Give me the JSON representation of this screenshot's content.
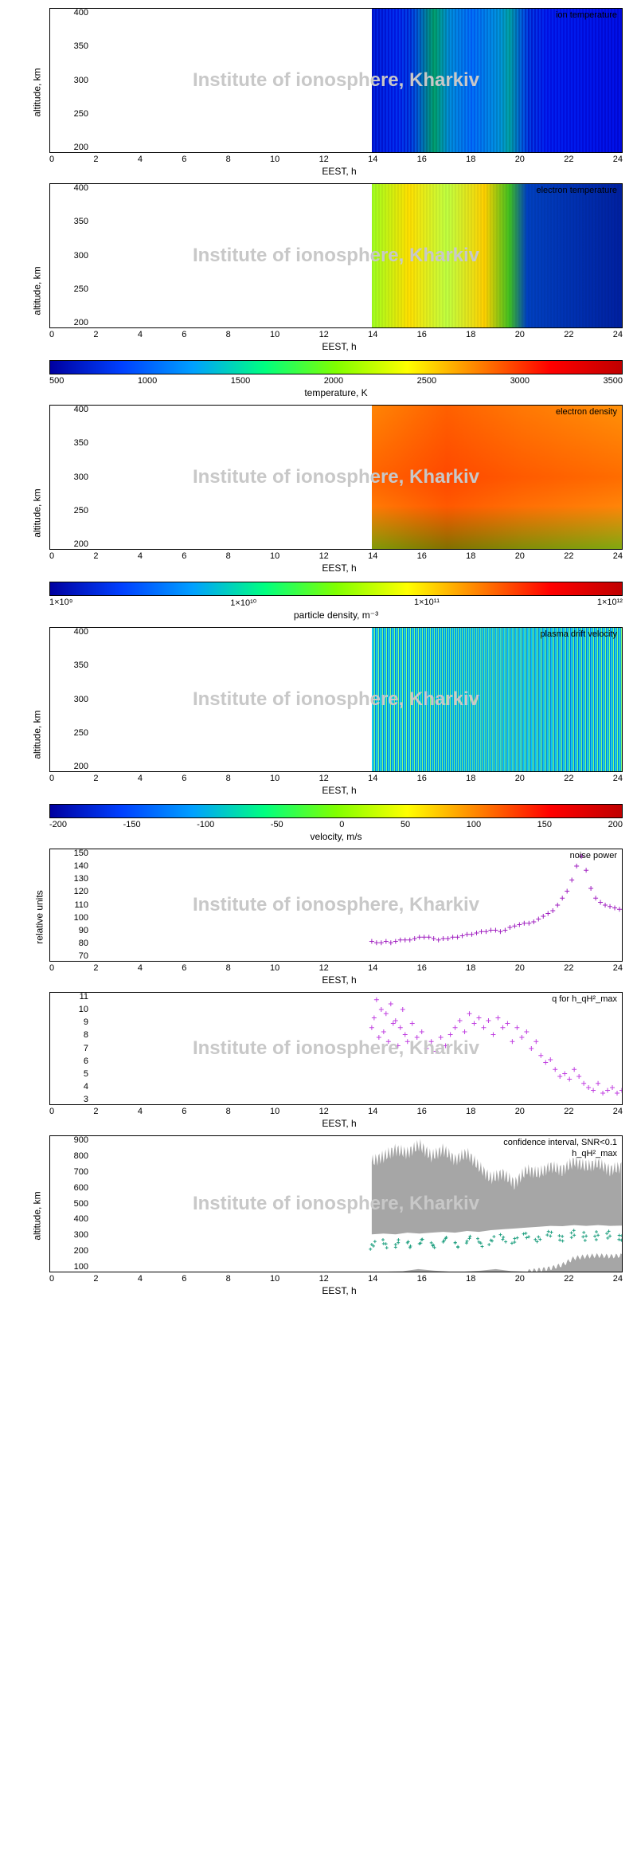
{
  "watermark": "Institute of ionosphere, Kharkiv",
  "xaxis": {
    "label": "EEST, h",
    "ticks": [
      "0",
      "2",
      "4",
      "6",
      "8",
      "10",
      "12",
      "14",
      "16",
      "18",
      "20",
      "22",
      "24"
    ],
    "min": 0,
    "max": 24,
    "data_start": 13.5,
    "data_end": 24
  },
  "altitude_axis": {
    "label": "altitude, km",
    "ticks": [
      "200",
      "250",
      "300",
      "350",
      "400"
    ],
    "min": 200,
    "max": 400
  },
  "colorbars": {
    "temperature": {
      "label": "temperature, K",
      "ticks": [
        "500",
        "1000",
        "1500",
        "2000",
        "2500",
        "3000",
        "3500"
      ],
      "gradient": "linear-gradient(to right,#0000a0,#0040ff,#00a0ff,#00ff80,#80ff00,#ffff00,#ff8000,#ff0000,#c00000)"
    },
    "density": {
      "label": "particle density, m⁻³",
      "ticks": [
        "1×10⁹",
        "1×10¹⁰",
        "1×10¹¹",
        "1×10¹²"
      ],
      "gradient": "linear-gradient(to right,#0000a0,#0040ff,#00a0ff,#00ff80,#80ff00,#ffff00,#ff8000,#ff0000,#c00000)"
    },
    "velocity": {
      "label": "velocity, m/s",
      "ticks": [
        "-200",
        "-150",
        "-100",
        "-50",
        "0",
        "50",
        "100",
        "150",
        "200"
      ],
      "gradient": "linear-gradient(to right,#0000a0,#0040ff,#00a0ff,#00ff80,#80ff00,#ffff00,#ff8000,#ff0000,#c00000)"
    }
  },
  "panels": {
    "ion_temp": {
      "title": "ion temperature",
      "fill": "repeating-linear-gradient(90deg,#0020c0 0 2px,#0040e0 2px 4px),linear-gradient(90deg,#004080,#0060c0 10%,#40c040 25%,#00a0e0 40%,#20c060 55%,#0040c0 70%,#0020a0 100%)",
      "blend": "overlay"
    },
    "elec_temp": {
      "title": "electron temperature",
      "fill": "repeating-linear-gradient(90deg,rgba(0,0,0,0.05) 0 2px,transparent 2px 4px),linear-gradient(90deg,#a0ff20,#ffe000 15%,#c0ff40 30%,#ffd000 45%,#40c020 55%,#0040c0 62%,#0020a0 100%)",
      "blend": "normal"
    },
    "density": {
      "title": "electron density",
      "fill": "linear-gradient(180deg,#ffc020 0%,#ff9000 50%,#ffb020 70%,#80e040 100%),linear-gradient(90deg,#ffb020,#ff8000 30%,#ffa020 60%,#ffc040 100%)",
      "blend": "multiply"
    },
    "drift": {
      "title": "plasma drift velocity",
      "fill": "repeating-linear-gradient(90deg,#00c0ff 0 1px,#40e0c0 1px 2px,#00a0e0 2px 3px,#80ff80 3px 4px,#0080e0 4px 5px)",
      "blend": "normal"
    }
  },
  "noise": {
    "title": "noise power",
    "ylabel": "relative units",
    "yticks": [
      "70",
      "80",
      "90",
      "100",
      "110",
      "120",
      "130",
      "140",
      "150"
    ],
    "ymin": 70,
    "ymax": 150,
    "color": "#a020c0",
    "points": [
      [
        13.5,
        84
      ],
      [
        13.7,
        83
      ],
      [
        13.9,
        83
      ],
      [
        14.1,
        84
      ],
      [
        14.3,
        83
      ],
      [
        14.5,
        84
      ],
      [
        14.7,
        85
      ],
      [
        14.9,
        85
      ],
      [
        15.1,
        85
      ],
      [
        15.3,
        86
      ],
      [
        15.5,
        87
      ],
      [
        15.7,
        87
      ],
      [
        15.9,
        87
      ],
      [
        16.1,
        86
      ],
      [
        16.3,
        85
      ],
      [
        16.5,
        86
      ],
      [
        16.7,
        86
      ],
      [
        16.9,
        87
      ],
      [
        17.1,
        87
      ],
      [
        17.3,
        88
      ],
      [
        17.5,
        89
      ],
      [
        17.7,
        89
      ],
      [
        17.9,
        90
      ],
      [
        18.1,
        91
      ],
      [
        18.3,
        91
      ],
      [
        18.5,
        92
      ],
      [
        18.7,
        92
      ],
      [
        18.9,
        91
      ],
      [
        19.1,
        92
      ],
      [
        19.3,
        94
      ],
      [
        19.5,
        95
      ],
      [
        19.7,
        96
      ],
      [
        19.9,
        97
      ],
      [
        20.1,
        97
      ],
      [
        20.3,
        98
      ],
      [
        20.5,
        100
      ],
      [
        20.7,
        102
      ],
      [
        20.9,
        104
      ],
      [
        21.1,
        106
      ],
      [
        21.3,
        110
      ],
      [
        21.5,
        115
      ],
      [
        21.7,
        120
      ],
      [
        21.9,
        128
      ],
      [
        22.1,
        138
      ],
      [
        22.3,
        145
      ],
      [
        22.5,
        135
      ],
      [
        22.7,
        122
      ],
      [
        22.9,
        115
      ],
      [
        23.1,
        112
      ],
      [
        23.3,
        110
      ],
      [
        23.5,
        109
      ],
      [
        23.7,
        108
      ],
      [
        23.9,
        107
      ]
    ]
  },
  "q": {
    "title": "q for h_qH²_max",
    "yticks": [
      "3",
      "4",
      "5",
      "6",
      "7",
      "8",
      "9",
      "10",
      "11"
    ],
    "ymin": 3,
    "ymax": 11,
    "color": "#c040e0",
    "points": [
      [
        13.5,
        8.5
      ],
      [
        13.6,
        9.2
      ],
      [
        13.7,
        10.5
      ],
      [
        13.8,
        7.8
      ],
      [
        13.9,
        9.8
      ],
      [
        14.0,
        8.2
      ],
      [
        14.1,
        9.5
      ],
      [
        14.2,
        7.5
      ],
      [
        14.3,
        10.2
      ],
      [
        14.4,
        8.8
      ],
      [
        14.5,
        9.0
      ],
      [
        14.6,
        7.2
      ],
      [
        14.7,
        8.5
      ],
      [
        14.8,
        9.8
      ],
      [
        14.9,
        8.0
      ],
      [
        15.0,
        7.5
      ],
      [
        15.2,
        8.8
      ],
      [
        15.4,
        7.8
      ],
      [
        15.6,
        8.2
      ],
      [
        15.8,
        7.0
      ],
      [
        16.0,
        7.5
      ],
      [
        16.2,
        6.8
      ],
      [
        16.4,
        7.8
      ],
      [
        16.6,
        7.2
      ],
      [
        16.8,
        8.0
      ],
      [
        17.0,
        8.5
      ],
      [
        17.2,
        9.0
      ],
      [
        17.4,
        8.2
      ],
      [
        17.6,
        9.5
      ],
      [
        17.8,
        8.8
      ],
      [
        18.0,
        9.2
      ],
      [
        18.2,
        8.5
      ],
      [
        18.4,
        9.0
      ],
      [
        18.6,
        8.0
      ],
      [
        18.8,
        9.2
      ],
      [
        19.0,
        8.5
      ],
      [
        19.2,
        8.8
      ],
      [
        19.4,
        7.5
      ],
      [
        19.6,
        8.5
      ],
      [
        19.8,
        7.8
      ],
      [
        20.0,
        8.2
      ],
      [
        20.2,
        7.0
      ],
      [
        20.4,
        7.5
      ],
      [
        20.6,
        6.5
      ],
      [
        20.8,
        6.0
      ],
      [
        21.0,
        6.2
      ],
      [
        21.2,
        5.5
      ],
      [
        21.4,
        5.0
      ],
      [
        21.6,
        5.2
      ],
      [
        21.8,
        4.8
      ],
      [
        22.0,
        5.5
      ],
      [
        22.2,
        5.0
      ],
      [
        22.4,
        4.5
      ],
      [
        22.6,
        4.2
      ],
      [
        22.8,
        4.0
      ],
      [
        23.0,
        4.5
      ],
      [
        23.2,
        3.8
      ],
      [
        23.4,
        4.0
      ],
      [
        23.6,
        4.2
      ],
      [
        23.8,
        3.8
      ],
      [
        24.0,
        4.0
      ]
    ]
  },
  "confidence": {
    "title1": "confidence interval, SNR<0.1",
    "title2": "h_qH²_max",
    "ylabel": "altitude, km",
    "yticks": [
      "100",
      "200",
      "300",
      "400",
      "500",
      "600",
      "700",
      "800",
      "900"
    ],
    "ymin": 100,
    "ymax": 900,
    "band_color": "#808080",
    "line_color": "#20a080",
    "upper_band": [
      [
        13.5,
        750
      ],
      [
        14,
        780
      ],
      [
        14.5,
        820
      ],
      [
        15,
        800
      ],
      [
        15.5,
        850
      ],
      [
        16,
        780
      ],
      [
        16.5,
        820
      ],
      [
        17,
        760
      ],
      [
        17.5,
        800
      ],
      [
        18,
        720
      ],
      [
        18.5,
        650
      ],
      [
        19,
        680
      ],
      [
        19.5,
        620
      ],
      [
        20,
        700
      ],
      [
        20.5,
        680
      ],
      [
        21,
        720
      ],
      [
        21.5,
        700
      ],
      [
        22,
        750
      ],
      [
        22.5,
        720
      ],
      [
        23,
        740
      ],
      [
        23.5,
        700
      ],
      [
        24,
        720
      ]
    ],
    "lower_band": [
      [
        13.5,
        100
      ],
      [
        20,
        100
      ],
      [
        20.5,
        110
      ],
      [
        21,
        120
      ],
      [
        21.5,
        140
      ],
      [
        22,
        180
      ],
      [
        22.5,
        190
      ],
      [
        23,
        195
      ],
      [
        23.5,
        190
      ],
      [
        24,
        195
      ]
    ],
    "line": [
      [
        13.5,
        260
      ],
      [
        14,
        265
      ],
      [
        14.5,
        260
      ],
      [
        15,
        270
      ],
      [
        15.5,
        265
      ],
      [
        16,
        270
      ],
      [
        16.5,
        275
      ],
      [
        17,
        270
      ],
      [
        17.5,
        280
      ],
      [
        18,
        275
      ],
      [
        18.5,
        285
      ],
      [
        19,
        290
      ],
      [
        19.5,
        295
      ],
      [
        20,
        300
      ],
      [
        20.5,
        305
      ],
      [
        21,
        310
      ],
      [
        21.5,
        308
      ],
      [
        22,
        315
      ],
      [
        22.5,
        310
      ],
      [
        23,
        315
      ],
      [
        23.5,
        310
      ],
      [
        24,
        312
      ]
    ]
  }
}
